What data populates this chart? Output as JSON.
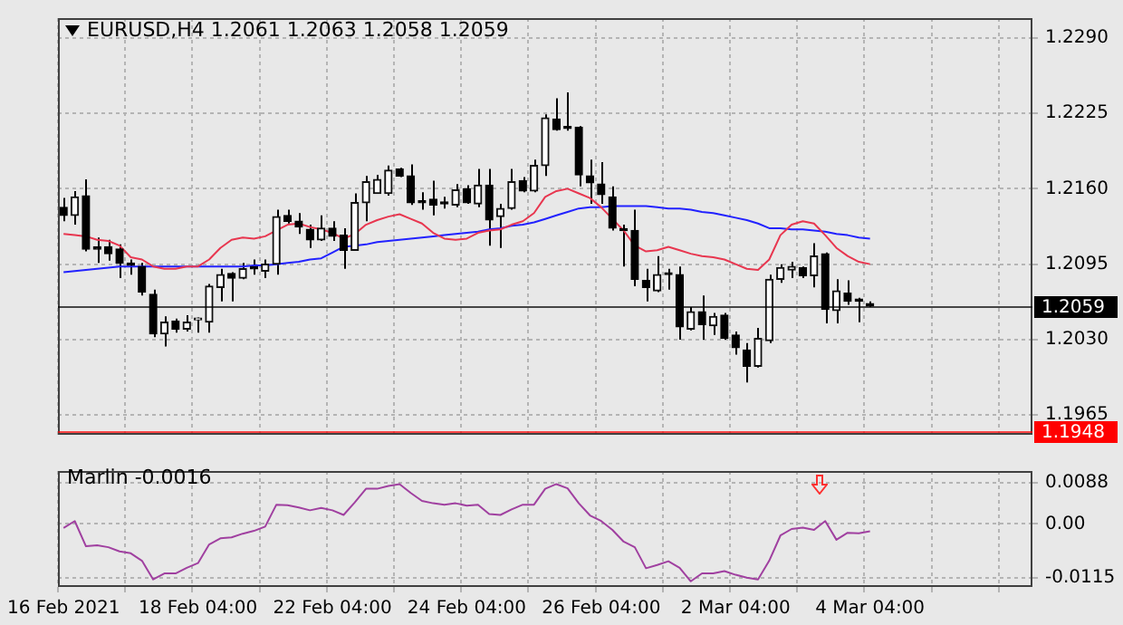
{
  "chart_data": [
    {
      "type": "candlestick",
      "title": "EURUSD,H4 1.2061 1.2063 1.2058 1.2059",
      "categories": [
        null,
        null,
        null,
        null,
        null,
        null,
        null,
        null,
        null,
        null,
        null,
        null,
        null,
        null,
        null,
        null,
        null,
        null,
        null,
        null,
        null,
        null,
        null,
        null,
        null,
        null,
        null,
        null,
        null,
        null,
        null,
        null,
        null,
        null,
        null,
        null,
        null,
        null,
        null,
        null,
        null,
        null,
        null,
        null,
        null,
        null,
        null,
        null,
        null,
        null,
        null,
        null,
        null,
        null,
        null,
        null,
        null,
        null,
        null,
        null,
        null,
        null,
        null,
        null,
        null,
        null,
        null,
        null,
        null,
        null,
        null,
        null,
        null,
        null,
        null,
        null,
        null,
        null,
        null,
        null,
        null,
        null,
        null,
        null,
        null,
        null,
        null
      ],
      "ohlc": [
        [
          1.2144,
          1.2152,
          1.2132,
          1.2137
        ],
        [
          1.2137,
          1.2158,
          1.2129,
          1.2153
        ],
        [
          1.2154,
          1.2168,
          1.2106,
          1.2108
        ],
        [
          1.211,
          1.2118,
          1.2096,
          1.2108
        ],
        [
          1.211,
          1.2116,
          1.2098,
          1.2104
        ],
        [
          1.2108,
          1.2112,
          1.2083,
          1.2096
        ],
        [
          1.2096,
          1.2099,
          1.2086,
          1.2094
        ],
        [
          1.2093,
          1.2096,
          1.2068,
          1.2071
        ],
        [
          1.2069,
          1.2073,
          1.2032,
          1.2035
        ],
        [
          1.2035,
          1.205,
          1.2024,
          1.2045
        ],
        [
          1.2046,
          1.2048,
          1.2036,
          1.2039
        ],
        [
          1.2039,
          1.2051,
          1.2037,
          1.2045
        ],
        [
          1.2047,
          1.2049,
          1.2036,
          1.2048
        ],
        [
          1.2045,
          1.2078,
          1.2036,
          1.2076
        ],
        [
          1.2075,
          1.2091,
          1.2063,
          1.2086
        ],
        [
          1.2087,
          1.2088,
          1.2063,
          1.2083
        ],
        [
          1.2083,
          1.2096,
          1.2082,
          1.2091
        ],
        [
          1.2091,
          1.2099,
          1.2086,
          1.2091
        ],
        [
          1.2089,
          1.2099,
          1.2083,
          1.2095
        ],
        [
          1.2095,
          1.2142,
          1.2086,
          1.2136
        ],
        [
          1.2137,
          1.2142,
          1.213,
          1.2132
        ],
        [
          1.2132,
          1.2139,
          1.2121,
          1.2127
        ],
        [
          1.2125,
          1.2129,
          1.2109,
          1.2116
        ],
        [
          1.2116,
          1.2137,
          1.2115,
          1.2126
        ],
        [
          1.2126,
          1.2132,
          1.2115,
          1.2119
        ],
        [
          1.212,
          1.2126,
          1.2091,
          1.2107
        ],
        [
          1.2107,
          1.2156,
          1.2107,
          1.2148
        ],
        [
          1.2148,
          1.2171,
          1.2132,
          1.2166
        ],
        [
          1.2156,
          1.2172,
          1.2156,
          1.2168
        ],
        [
          1.2156,
          1.218,
          1.2154,
          1.2176
        ],
        [
          1.2177,
          1.2178,
          1.217,
          1.2171
        ],
        [
          1.2171,
          1.2181,
          1.2146,
          1.2148
        ],
        [
          1.2149,
          1.2157,
          1.2142,
          1.2148
        ],
        [
          1.2151,
          1.2167,
          1.2137,
          1.2146
        ],
        [
          1.2148,
          1.2153,
          1.2143,
          1.2147
        ],
        [
          1.2146,
          1.2164,
          1.2144,
          1.2159
        ],
        [
          1.216,
          1.2163,
          1.2147,
          1.2148
        ],
        [
          1.2147,
          1.2177,
          1.2144,
          1.2163
        ],
        [
          1.2163,
          1.2177,
          1.2111,
          1.2133
        ],
        [
          1.2136,
          1.2147,
          1.2109,
          1.2143
        ],
        [
          1.2143,
          1.2177,
          1.2142,
          1.2166
        ],
        [
          1.2167,
          1.217,
          1.2157,
          1.2158
        ],
        [
          1.2158,
          1.2185,
          1.2157,
          1.218
        ],
        [
          1.218,
          1.2224,
          1.2171,
          1.2221
        ],
        [
          1.222,
          1.2238,
          1.221,
          1.2211
        ],
        [
          1.2213,
          1.2243,
          1.221,
          1.2212
        ],
        [
          1.2213,
          1.2214,
          1.2162,
          1.2172
        ],
        [
          1.2171,
          1.2185,
          1.2147,
          1.2165
        ],
        [
          1.2164,
          1.2183,
          1.2147,
          1.2155
        ],
        [
          1.2153,
          1.2162,
          1.2124,
          1.2126
        ],
        [
          1.2125,
          1.2129,
          1.2093,
          1.2124
        ],
        [
          1.2124,
          1.2142,
          1.2076,
          1.2082
        ],
        [
          1.2081,
          1.2091,
          1.2063,
          1.2075
        ],
        [
          1.2072,
          1.2102,
          1.2071,
          1.2086
        ],
        [
          1.2086,
          1.2091,
          1.2073,
          1.2086
        ],
        [
          1.2086,
          1.2093,
          1.203,
          1.2041
        ],
        [
          1.2039,
          1.2058,
          1.2038,
          1.2054
        ],
        [
          1.2054,
          1.2068,
          1.203,
          1.2043
        ],
        [
          1.2042,
          1.2053,
          1.2034,
          1.205
        ],
        [
          1.2051,
          1.2053,
          1.203,
          1.2031
        ],
        [
          1.2034,
          1.2037,
          1.2017,
          1.2023
        ],
        [
          1.2021,
          1.2027,
          1.1993,
          1.2007
        ],
        [
          1.2007,
          1.204,
          1.2006,
          1.2031
        ],
        [
          1.2029,
          1.2086,
          1.2027,
          1.2082
        ],
        [
          1.2082,
          1.2095,
          1.2079,
          1.2092
        ],
        [
          1.209,
          1.2097,
          1.2083,
          1.2093
        ],
        [
          1.2092,
          1.2093,
          1.2083,
          1.2085
        ],
        [
          1.2085,
          1.2113,
          1.2075,
          1.2102
        ],
        [
          1.2104,
          1.2105,
          1.2044,
          1.2056
        ],
        [
          1.2055,
          1.2082,
          1.2044,
          1.2072
        ],
        [
          1.207,
          1.2081,
          1.206,
          1.2063
        ],
        [
          1.2065,
          1.2066,
          1.2045,
          1.2063
        ],
        [
          1.2061,
          1.2063,
          1.2058,
          1.2059
        ],
        null,
        null,
        null,
        null,
        null,
        null,
        null,
        null,
        null,
        null,
        null,
        null,
        null,
        null
      ],
      "series": [
        {
          "type": "line",
          "color": "#e8364f",
          "values": [
            1.2121,
            1.212,
            1.2119,
            1.2116,
            1.2115,
            1.2111,
            1.2101,
            1.2099,
            1.2093,
            1.2091,
            1.2091,
            1.2093,
            1.2093,
            1.2099,
            1.2109,
            1.2116,
            1.2118,
            1.2117,
            1.2119,
            1.2124,
            1.2129,
            1.213,
            1.2127,
            1.2125,
            1.2122,
            1.2117,
            1.2121,
            1.2129,
            1.2133,
            1.2136,
            1.2138,
            1.2134,
            1.213,
            1.2122,
            1.2117,
            1.2116,
            1.2117,
            1.2122,
            1.2124,
            1.2125,
            1.2129,
            1.2132,
            1.2139,
            1.2153,
            1.2158,
            1.216,
            1.2156,
            1.2152,
            1.2144,
            1.2134,
            1.2124,
            1.2111,
            1.2106,
            1.2107,
            1.211,
            1.2107,
            1.2104,
            1.2102,
            1.2101,
            1.2099,
            1.2095,
            1.2091,
            1.209,
            1.2099,
            1.212,
            1.2129,
            1.2132,
            1.213,
            1.212,
            1.2109,
            1.2102,
            1.2097,
            1.2095,
            null,
            null,
            null,
            null,
            null,
            null,
            null,
            null,
            null,
            null,
            null,
            null,
            null,
            null
          ]
        },
        {
          "type": "line",
          "color": "#2222ff",
          "values": [
            1.2088,
            1.2089,
            1.209,
            1.2091,
            1.2092,
            1.2093,
            1.2093,
            1.2093,
            1.2093,
            1.2093,
            1.2093,
            1.2093,
            1.2093,
            1.2093,
            1.2093,
            1.2093,
            1.2093,
            1.2094,
            1.2094,
            1.2095,
            1.2096,
            1.2097,
            1.2099,
            1.21,
            1.2105,
            1.211,
            1.2111,
            1.2112,
            1.2114,
            1.2115,
            1.2116,
            1.2117,
            1.2118,
            1.2119,
            1.212,
            1.2121,
            1.2122,
            1.2123,
            1.2125,
            1.2126,
            1.2128,
            1.2129,
            1.2131,
            1.2134,
            1.2137,
            1.214,
            1.2143,
            1.2144,
            1.2144,
            1.2145,
            1.2145,
            1.2145,
            1.2145,
            1.2144,
            1.2143,
            1.2143,
            1.2142,
            1.214,
            1.2139,
            1.2137,
            1.2135,
            1.2133,
            1.213,
            1.2126,
            1.2126,
            1.2125,
            1.2125,
            1.2124,
            1.2123,
            1.2121,
            1.212,
            1.2118,
            1.2117,
            null,
            null,
            null,
            null,
            null,
            null,
            null,
            null,
            null,
            null,
            null,
            null,
            null,
            null
          ]
        }
      ],
      "ylim": [
        1.1948,
        1.2307
      ],
      "yticks": [
        {
          "value": 1.229,
          "label": "1.2290"
        },
        {
          "value": 1.2225,
          "label": "1.2225"
        },
        {
          "value": 1.216,
          "label": "1.2160"
        },
        {
          "value": 1.2095,
          "label": "1.2095"
        },
        {
          "value": 1.203,
          "label": "1.2030"
        },
        {
          "value": 1.1965,
          "label": "1.1965"
        }
      ],
      "grid": true,
      "tick_labels": "y",
      "ref_lines": [
        {
          "axis": "y",
          "value": 1.2059,
          "label": "1.2059",
          "color": "#000000"
        },
        {
          "axis": "y",
          "value": 1.1948,
          "label": "1.1948",
          "color": "#ff0000"
        }
      ]
    },
    {
      "type": "line",
      "title": "Marlin -0.0016",
      "categories": [
        "16 Feb 2021",
        null,
        null,
        null,
        null,
        null,
        null,
        null,
        null,
        null,
        null,
        null,
        "18 Feb 04:00",
        null,
        null,
        null,
        null,
        null,
        null,
        null,
        null,
        null,
        null,
        null,
        "22 Feb 04:00",
        null,
        null,
        null,
        null,
        null,
        null,
        null,
        null,
        null,
        null,
        null,
        "24 Feb 04:00",
        null,
        null,
        null,
        null,
        null,
        null,
        null,
        null,
        null,
        null,
        null,
        "26 Feb 04:00",
        null,
        null,
        null,
        null,
        null,
        null,
        null,
        null,
        null,
        null,
        null,
        "2 Mar 04:00",
        null,
        null,
        null,
        null,
        null,
        null,
        null,
        null,
        null,
        null,
        null,
        "4 Mar 04:00",
        null,
        null,
        null,
        null,
        null,
        null,
        null,
        null,
        null,
        null,
        null,
        null,
        null,
        null
      ],
      "series": [
        {
          "color": "#a040a0",
          "values": [
            -0.0009,
            0.0006,
            -0.0048,
            -0.0046,
            -0.005,
            -0.0059,
            -0.0063,
            -0.0079,
            -0.0119,
            -0.0106,
            -0.0106,
            -0.0094,
            -0.0084,
            -0.0044,
            -0.0031,
            -0.0029,
            -0.0021,
            -0.0015,
            -0.0006,
            0.0041,
            0.004,
            0.0035,
            0.0029,
            0.0034,
            0.0029,
            0.0019,
            0.0046,
            0.0075,
            0.0075,
            0.0081,
            0.0085,
            0.0066,
            0.0049,
            0.0044,
            0.0041,
            0.0044,
            0.0039,
            0.0041,
            0.0021,
            0.0019,
            0.0031,
            0.0041,
            0.0041,
            0.0075,
            0.0085,
            0.0076,
            0.0044,
            0.0018,
            0.0006,
            -0.0013,
            -0.0038,
            -0.005,
            -0.0095,
            -0.0088,
            -0.008,
            -0.0094,
            -0.0123,
            -0.0106,
            -0.0106,
            -0.0101,
            -0.0109,
            -0.0115,
            -0.0119,
            -0.0079,
            -0.0025,
            -0.0011,
            -0.0008,
            -0.0013,
            0.0006,
            -0.0034,
            -0.0019,
            -0.002,
            -0.0016,
            null,
            null,
            null,
            null,
            null,
            null,
            null,
            null,
            null,
            null,
            null,
            null,
            null,
            null
          ]
        }
      ],
      "ylim": [
        -0.0135,
        0.0113
      ],
      "yticks": [
        0.0088,
        {
          "value": 0,
          "label": "0.00"
        },
        -0.0115
      ],
      "grid": true
    }
  ]
}
